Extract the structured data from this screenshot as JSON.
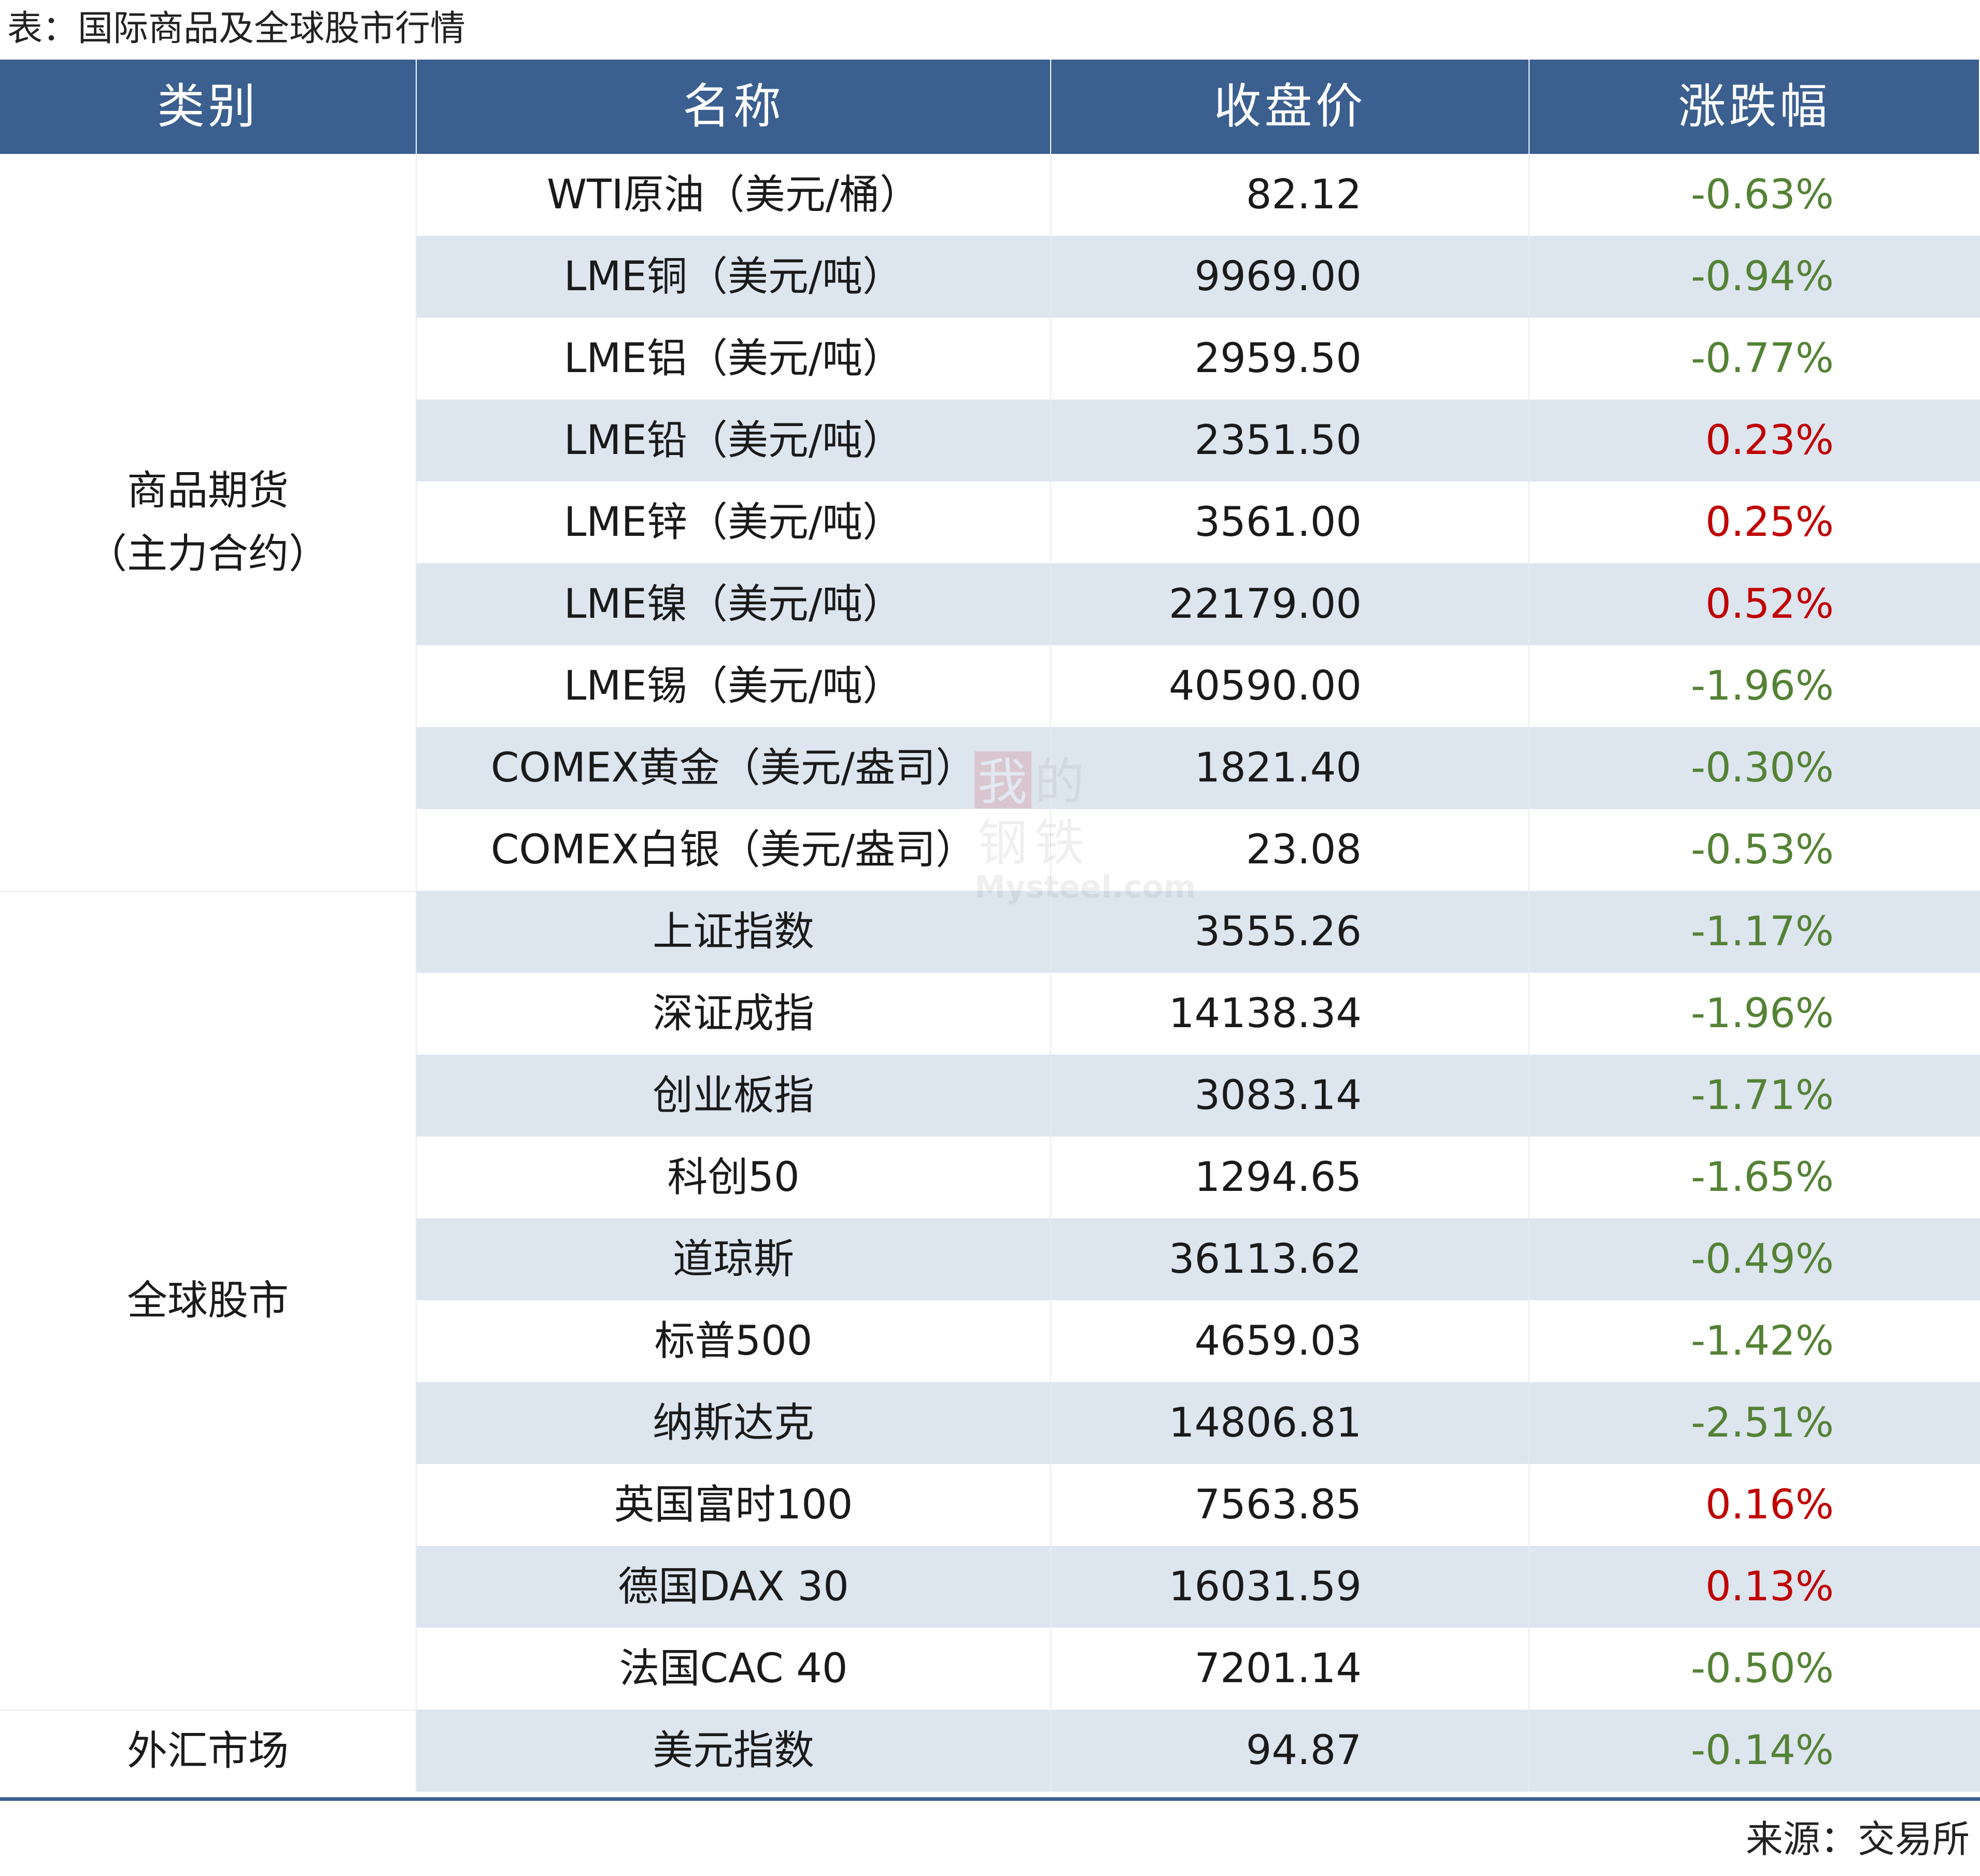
{
  "caption": "表：国际商品及全球股市行情",
  "headers": [
    "类别",
    "名称",
    "收盘价",
    "涨跌幅"
  ],
  "categories": {
    "commodities_line1": "商品期货",
    "commodities_line2": "（主力合约）",
    "stocks": "全球股市",
    "fx": "外汇市场"
  },
  "rows": [
    {
      "name": "WTI原油（美元/桶）",
      "price": "82.12",
      "change": "-0.63%",
      "direction": "down"
    },
    {
      "name": "LME铜（美元/吨）",
      "price": "9969.00",
      "change": "-0.94%",
      "direction": "down"
    },
    {
      "name": "LME铝（美元/吨）",
      "price": "2959.50",
      "change": "-0.77%",
      "direction": "down"
    },
    {
      "name": "LME铅（美元/吨）",
      "price": "2351.50",
      "change": "0.23%",
      "direction": "up"
    },
    {
      "name": "LME锌（美元/吨）",
      "price": "3561.00",
      "change": "0.25%",
      "direction": "up"
    },
    {
      "name": "LME镍（美元/吨）",
      "price": "22179.00",
      "change": "0.52%",
      "direction": "up"
    },
    {
      "name": "LME锡（美元/吨）",
      "price": "40590.00",
      "change": "-1.96%",
      "direction": "down"
    },
    {
      "name": "COMEX黄金（美元/盎司）",
      "price": "1821.40",
      "change": "-0.30%",
      "direction": "down"
    },
    {
      "name": "COMEX白银（美元/盎司）",
      "price": "23.08",
      "change": "-0.53%",
      "direction": "down"
    },
    {
      "name": "上证指数",
      "price": "3555.26",
      "change": "-1.17%",
      "direction": "down"
    },
    {
      "name": "深证成指",
      "price": "14138.34",
      "change": "-1.96%",
      "direction": "down"
    },
    {
      "name": "创业板指",
      "price": "3083.14",
      "change": "-1.71%",
      "direction": "down"
    },
    {
      "name": "科创50",
      "price": "1294.65",
      "change": "-1.65%",
      "direction": "down"
    },
    {
      "name": "道琼斯",
      "price": "36113.62",
      "change": "-0.49%",
      "direction": "down"
    },
    {
      "name": "标普500",
      "price": "4659.03",
      "change": "-1.42%",
      "direction": "down"
    },
    {
      "name": "纳斯达克",
      "price": "14806.81",
      "change": "-2.51%",
      "direction": "down"
    },
    {
      "name": "英国富时100",
      "price": "7563.85",
      "change": "0.16%",
      "direction": "up"
    },
    {
      "name": "德国DAX 30",
      "price": "16031.59",
      "change": "0.13%",
      "direction": "up"
    },
    {
      "name": "法国CAC 40",
      "price": "7201.14",
      "change": "-0.50%",
      "direction": "down"
    },
    {
      "name": "美元指数",
      "price": "94.87",
      "change": "-0.14%",
      "direction": "down"
    }
  ],
  "colors": {
    "header_bg": "#3b5f8f",
    "band": "#dde5ef",
    "up": "#c00000",
    "down": "#548235"
  },
  "watermark": {
    "line1": "我的",
    "line2": "钢铁",
    "brand": "Mysteel.com"
  },
  "source": "来源：交易所"
}
